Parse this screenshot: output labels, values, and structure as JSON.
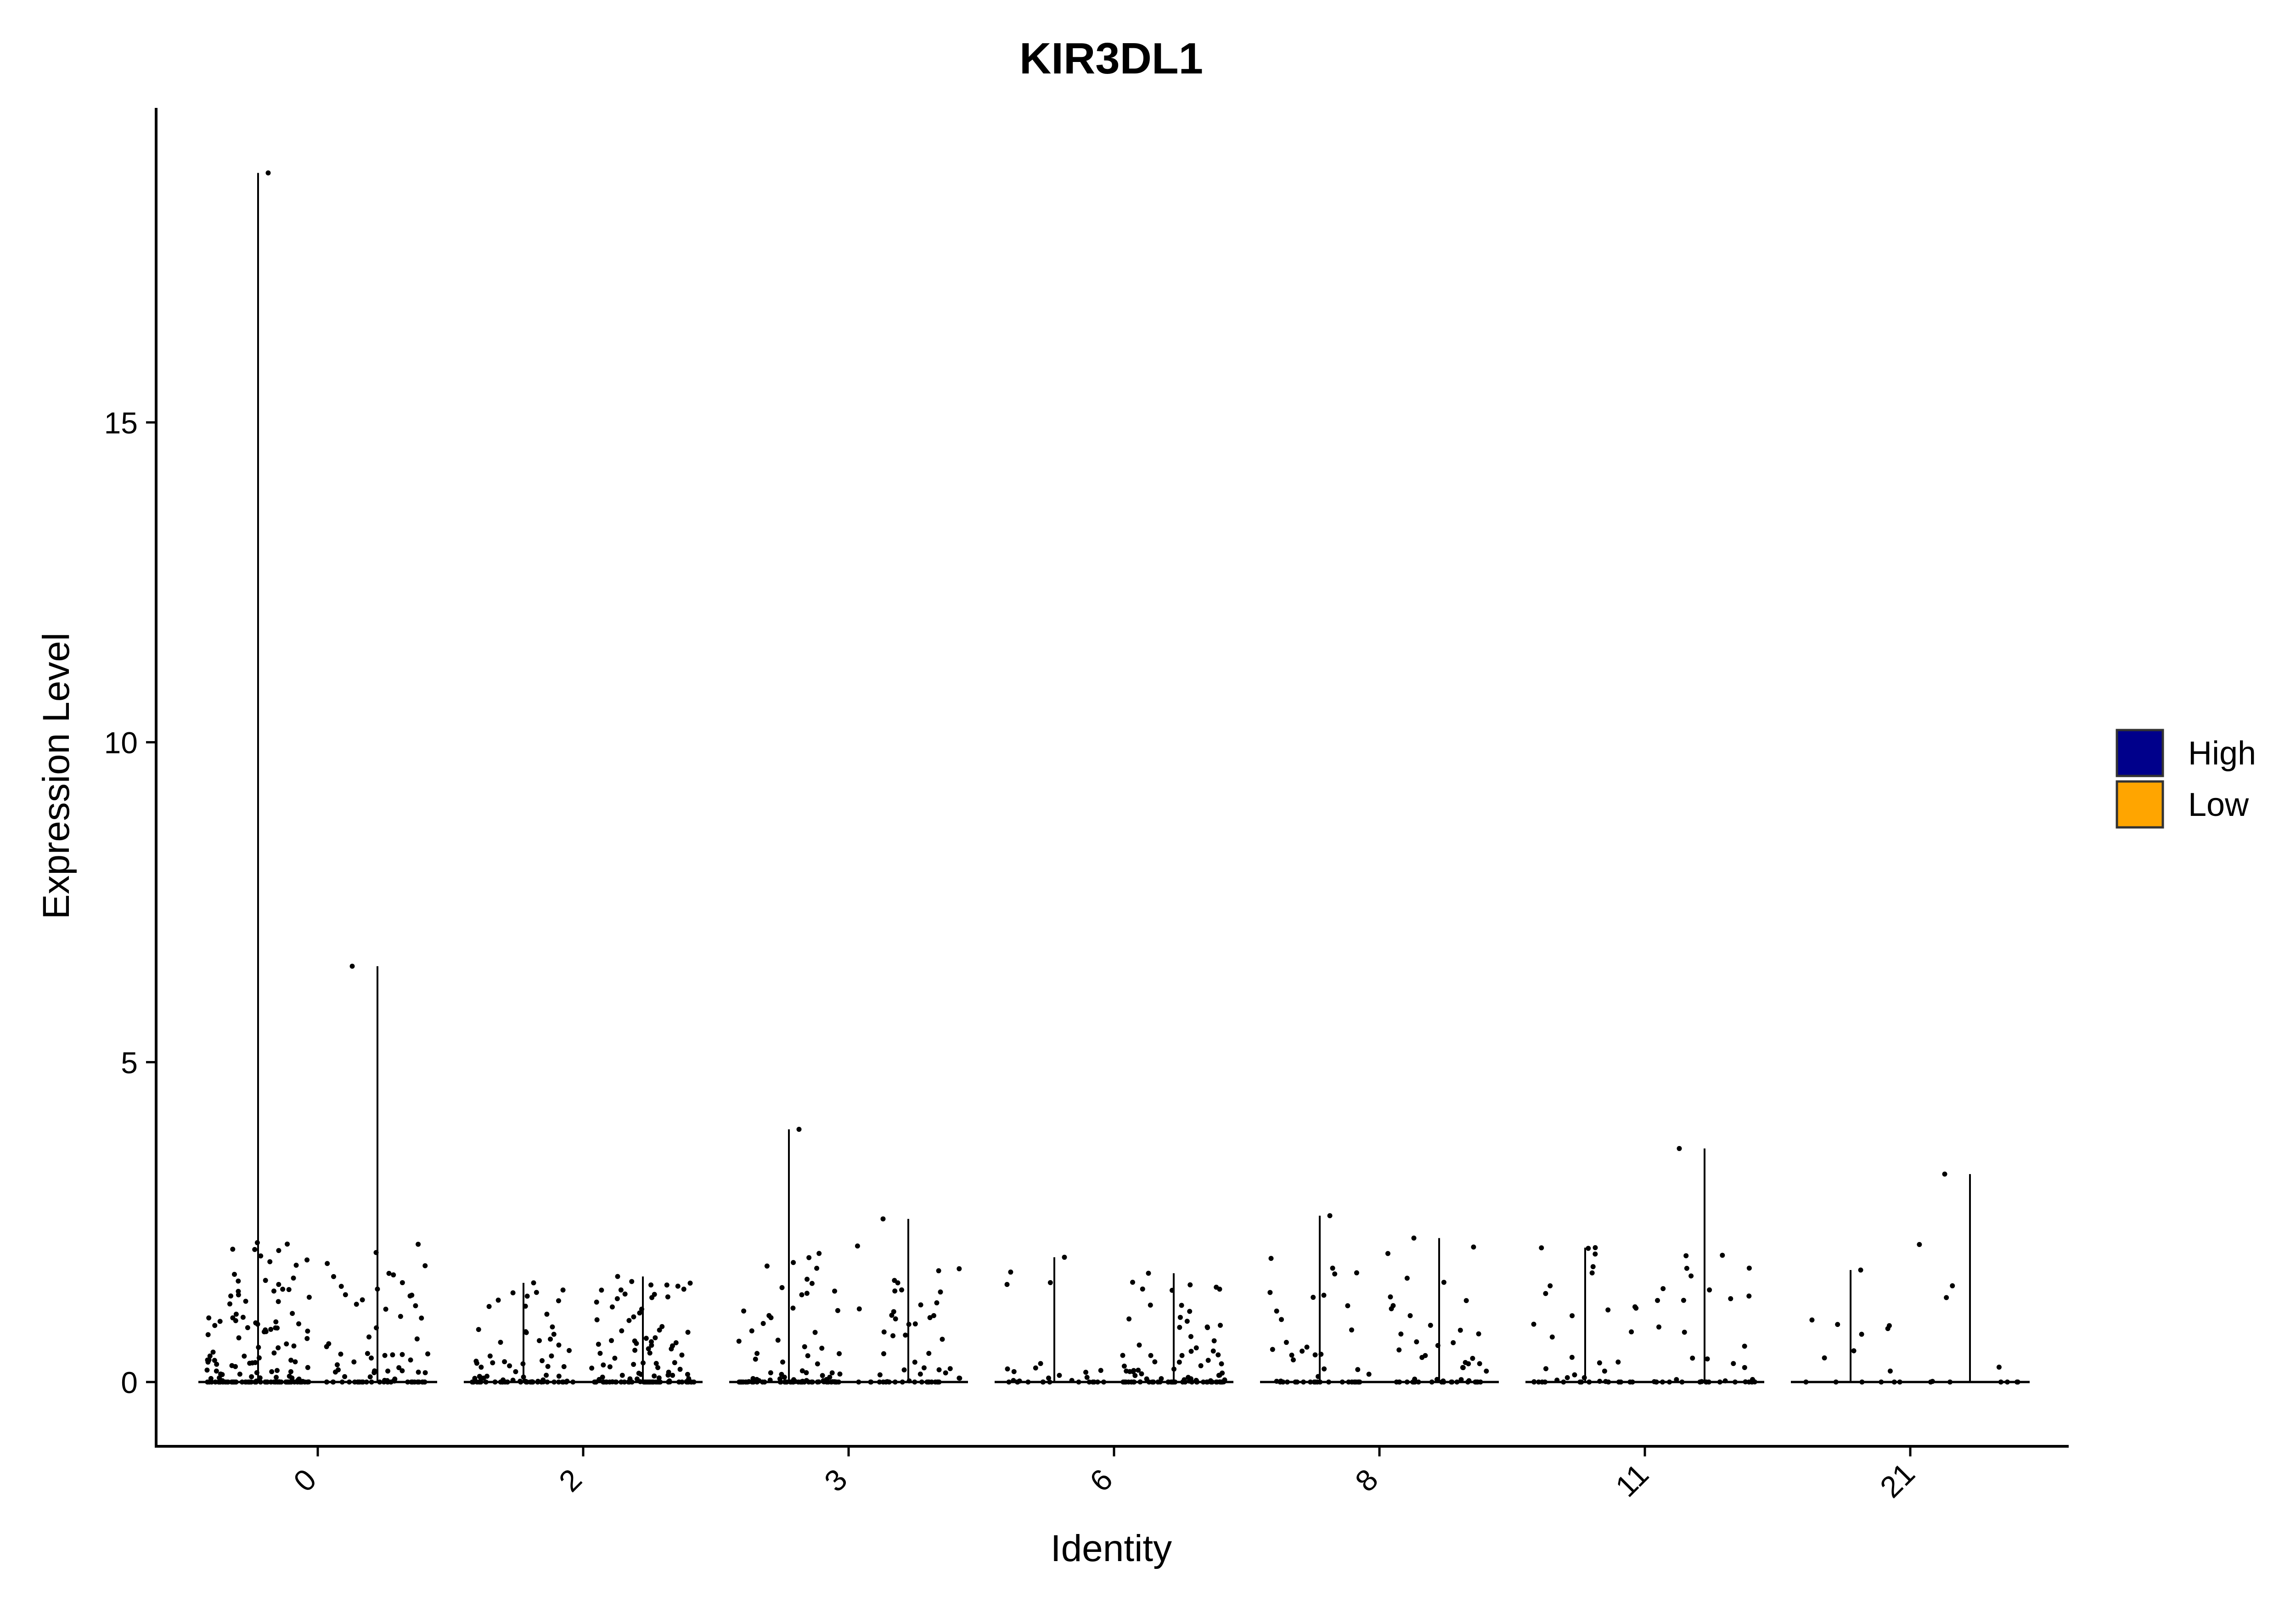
{
  "chart_data": {
    "type": "violin",
    "title": "KIR3DL1",
    "xlabel": "Identity",
    "ylabel": "Expression Level",
    "ylim": [
      -0.95,
      19.6
    ],
    "yticks": [
      0,
      5,
      10,
      15
    ],
    "grid": false,
    "legend_position": "right",
    "categories": [
      "0",
      "2",
      "3",
      "6",
      "8",
      "11",
      "21"
    ],
    "series": [
      {
        "name": "High",
        "color": "#00008B",
        "max": [
          18.9,
          1.55,
          3.95,
          1.95,
          2.6,
          2.1,
          1.75
        ],
        "n_points": [
          150,
          80,
          95,
          28,
          45,
          40,
          14
        ]
      },
      {
        "name": "Low",
        "color": "#FFA500",
        "max": [
          6.5,
          1.65,
          2.55,
          1.7,
          2.25,
          3.65,
          3.25
        ],
        "n_points": [
          80,
          110,
          55,
          95,
          50,
          38,
          12
        ]
      }
    ]
  }
}
